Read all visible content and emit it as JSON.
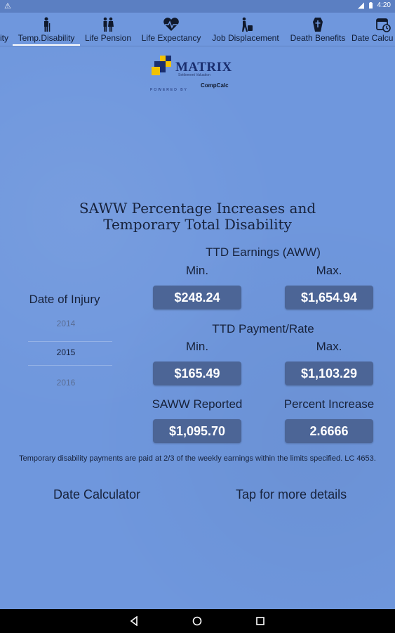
{
  "status_bar": {
    "time": "4:20",
    "icons": [
      "warning-icon",
      "wifi-icon",
      "battery-icon"
    ]
  },
  "tabs": [
    {
      "label": "ity",
      "icon": "partial-icon"
    },
    {
      "label": "Temp.Disability",
      "icon": "person-cane-icon",
      "active": true
    },
    {
      "label": "Life Pension",
      "icon": "couple-icon"
    },
    {
      "label": "Life Expectancy",
      "icon": "heartbeat-icon"
    },
    {
      "label": "Job Displacement",
      "icon": "person-walking-luggage-icon"
    },
    {
      "label": "Death Benefits",
      "icon": "coffin-icon"
    },
    {
      "label": "Date Calcu",
      "icon": "calendar-icon"
    }
  ],
  "logo": {
    "brand": "MATRIX",
    "tagline": "Settlement Valuation",
    "powered_by": "POWERED BY",
    "partner": "CompCalc"
  },
  "heading": {
    "line1": "SAWW Percentage Increases and",
    "line2": "Temporary Total Disability"
  },
  "ttd_earnings": {
    "title": "TTD Earnings (AWW)",
    "min_label": "Min.",
    "max_label": "Max.",
    "min_value": "$248.24",
    "max_value": "$1,654.94"
  },
  "date_of_injury": {
    "label": "Date of Injury",
    "years": [
      "2014",
      "2015",
      "2016"
    ],
    "selected": "2015"
  },
  "ttd_payment": {
    "title": "TTD Payment/Rate",
    "min_label": "Min.",
    "max_label": "Max.",
    "min_value": "$165.49",
    "max_value": "$1,103.29"
  },
  "saww": {
    "reported_label": "SAWW Reported",
    "reported_value": "$1,095.70",
    "increase_label": "Percent Increase",
    "increase_value": "2.6666"
  },
  "footnote": "Temporary disability payments are paid at 2/3 of the weekly earnings within the limits specified. LC 4653.",
  "links": {
    "date_calculator": "Date Calculator",
    "more_details": "Tap for more details"
  },
  "colors": {
    "background": "#6f97dd",
    "button": "#4c6596",
    "active_indicator": "#ffffff"
  }
}
